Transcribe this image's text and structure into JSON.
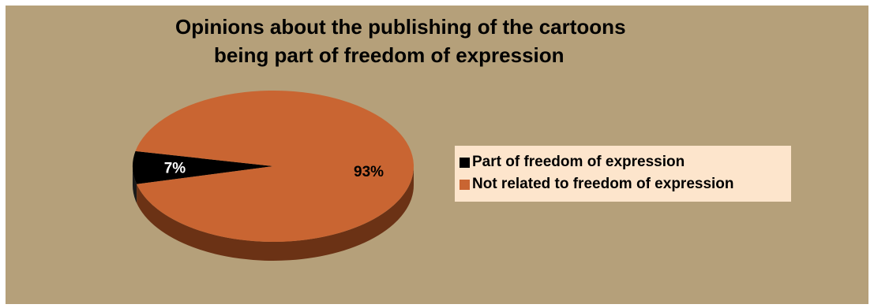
{
  "chart_data": {
    "type": "pie",
    "style": "3d",
    "title": [
      "Opinions about the publishing of the cartoons",
      "being part of freedom of expression"
    ],
    "slices": [
      {
        "label": "Part of freedom of expression",
        "value": 7,
        "data_label": "7%",
        "color": "#000000",
        "side_color": "#1a1a1a"
      },
      {
        "label": "Not related to freedom of expression",
        "value": 93,
        "data_label": "93%",
        "color": "#c96532",
        "side_color": "#6b3215"
      }
    ],
    "legend_placement": "right",
    "background_color": "#b5a07a",
    "legend_background": "#fde5cc"
  }
}
